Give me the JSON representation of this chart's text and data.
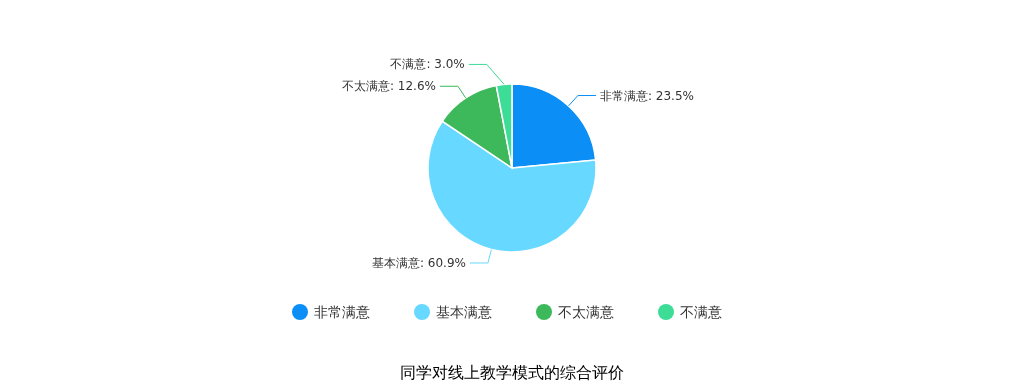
{
  "chart_data": {
    "type": "pie",
    "title": "同学对线上教学模式的综合评价",
    "categories": [
      "非常满意",
      "基本满意",
      "不太满意",
      "不满意"
    ],
    "values": [
      23.5,
      60.9,
      12.6,
      3.0
    ],
    "value_labels": [
      "非常满意: 23.5%",
      "基本满意: 60.9%",
      "不太满意: 12.6%",
      "不满意: 3.0%"
    ],
    "colors": [
      "#0b8ff6",
      "#67d8ff",
      "#3db85a",
      "#3ddc97"
    ],
    "legend": "bottom"
  }
}
